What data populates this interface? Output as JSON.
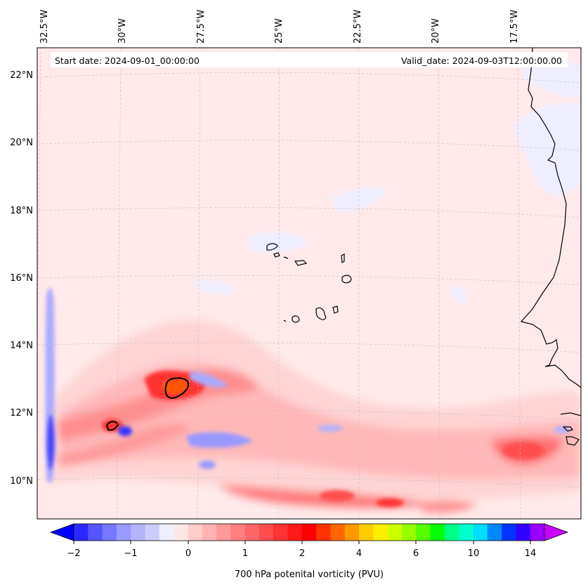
{
  "header": {
    "start_date": "Start date: 2024-09-01_00:00:00",
    "valid_date": "Valid_date: 2024-09-03T12:00:00.00"
  },
  "map": {
    "lon_labels": [
      "32.5°W",
      "30°W",
      "27.5°W",
      "25°W",
      "22.5°W",
      "20°W",
      "17.5°W"
    ],
    "lat_labels": [
      "22°N",
      "20°N",
      "18°N",
      "16°N",
      "14°N",
      "12°N",
      "10°N"
    ],
    "field": "700 hPa potential vorticity",
    "features": [
      "coastline-west-africa",
      "cape-verde-islands",
      "pv-maximum-contour-12.7N-28.8W",
      "pv-maximum-contour-11.6N-31.3W"
    ]
  },
  "colorbar": {
    "label": "700 hPa potenital vorticity (PVU)",
    "tick_labels": [
      "−2",
      "−1",
      "0",
      "1",
      "2",
      "4",
      "6",
      "10",
      "14"
    ],
    "colors": [
      "#0000ff",
      "#2a2aff",
      "#5555ff",
      "#7777ff",
      "#9999ff",
      "#b3b3ff",
      "#ccccff",
      "#eeeeff",
      "#ffe6e6",
      "#ffcccc",
      "#ffb3b3",
      "#ff9999",
      "#ff7f7f",
      "#ff6666",
      "#ff4d4d",
      "#ff3333",
      "#ff1a1a",
      "#ff0000",
      "#ff3300",
      "#ff6600",
      "#ff9900",
      "#ffcc00",
      "#ffee00",
      "#ccff00",
      "#99ff00",
      "#55ff00",
      "#00ff00",
      "#00ff88",
      "#00ffcc",
      "#00ddff",
      "#0088ff",
      "#0033ff",
      "#3300ff",
      "#9900ff",
      "#cc00ff"
    ]
  }
}
